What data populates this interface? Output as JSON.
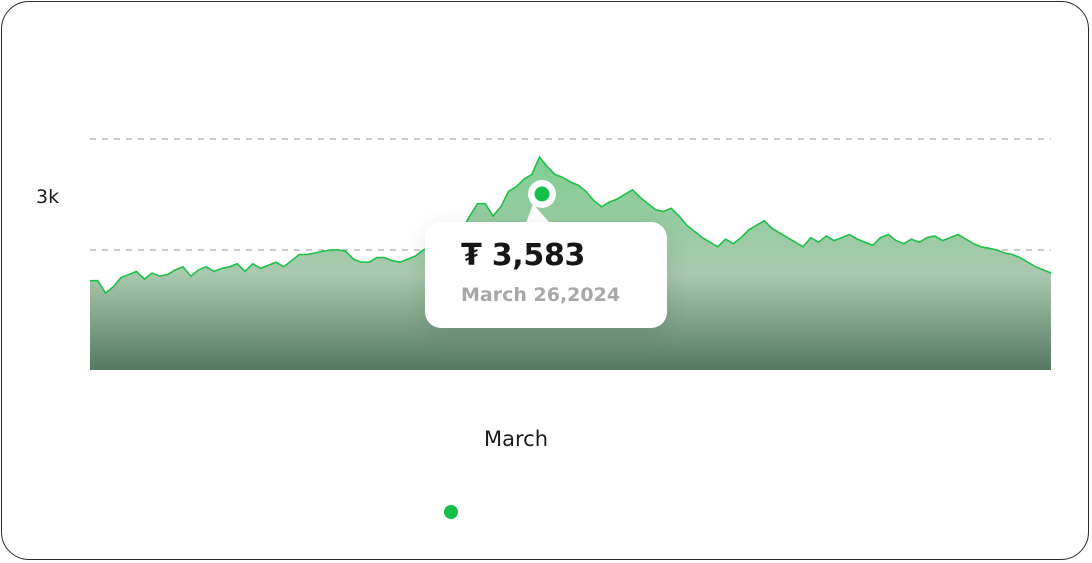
{
  "chart_data": {
    "type": "area",
    "title": "",
    "xlabel": "March",
    "ylabel": "",
    "y_tick_labels": [
      "3k"
    ],
    "ylim": [
      2200,
      3700
    ],
    "grid": true,
    "series": [
      {
        "name": "",
        "x": [
          0,
          1,
          2,
          3,
          4,
          5,
          6,
          7,
          8,
          9,
          10,
          11,
          12,
          13,
          14,
          15,
          16,
          17,
          18,
          19,
          20,
          21,
          22,
          23,
          24,
          25,
          26,
          27,
          28,
          29,
          30,
          31,
          32,
          33,
          34,
          35,
          36,
          37,
          38,
          39,
          40,
          41,
          42,
          43,
          44,
          45,
          46,
          47,
          48,
          49,
          50,
          51,
          52,
          53,
          54,
          55,
          56,
          57,
          58,
          59,
          60,
          61,
          62,
          63,
          64,
          65,
          66,
          67,
          68,
          69,
          70,
          71,
          72,
          73,
          74,
          75,
          76,
          77,
          78,
          79,
          80,
          81,
          82,
          83,
          84,
          85,
          86,
          87,
          88,
          89,
          90,
          91,
          92,
          93,
          94,
          95,
          96,
          97,
          98,
          99,
          100,
          101,
          102,
          103,
          104,
          105,
          106,
          107,
          108,
          109,
          110,
          111,
          112,
          113,
          114,
          115,
          116,
          117,
          118,
          119,
          120,
          121,
          122,
          123,
          124
        ],
        "values": [
          2780,
          2780,
          2700,
          2740,
          2800,
          2820,
          2840,
          2790,
          2830,
          2810,
          2820,
          2850,
          2870,
          2810,
          2850,
          2870,
          2840,
          2860,
          2870,
          2890,
          2840,
          2890,
          2860,
          2880,
          2900,
          2870,
          2910,
          2950,
          2950,
          2960,
          2970,
          2980,
          2980,
          2970,
          2920,
          2900,
          2900,
          2930,
          2930,
          2910,
          2900,
          2920,
          2940,
          2980,
          3000,
          3010,
          3020,
          3060,
          3110,
          3200,
          3280,
          3280,
          3200,
          3260,
          3360,
          3390,
          3440,
          3470,
          3583,
          3520,
          3470,
          3450,
          3420,
          3400,
          3360,
          3300,
          3260,
          3290,
          3310,
          3340,
          3370,
          3320,
          3280,
          3240,
          3230,
          3250,
          3200,
          3140,
          3100,
          3060,
          3030,
          3000,
          3050,
          3020,
          3060,
          3110,
          3140,
          3170,
          3120,
          3090,
          3060,
          3030,
          3000,
          3060,
          3030,
          3070,
          3040,
          3060,
          3080,
          3050,
          3030,
          3010,
          3060,
          3080,
          3040,
          3020,
          3050,
          3030,
          3060,
          3070,
          3040,
          3060,
          3080,
          3050,
          3020,
          3000,
          2990,
          2980,
          2960,
          2950,
          2930,
          2900,
          2870,
          2850,
          2830
        ]
      }
    ],
    "tooltip": {
      "value": "₮ 3,583",
      "date": "March 26,2024"
    }
  },
  "colors": {
    "line": "#1fbf4a",
    "area_top": "#7fcf93",
    "area_mid": "#a9c9ae",
    "area_bottom": "#557a60",
    "grid": "#9a9a9a",
    "marker": "#15c04a",
    "legend_dot": "#15c04a"
  }
}
